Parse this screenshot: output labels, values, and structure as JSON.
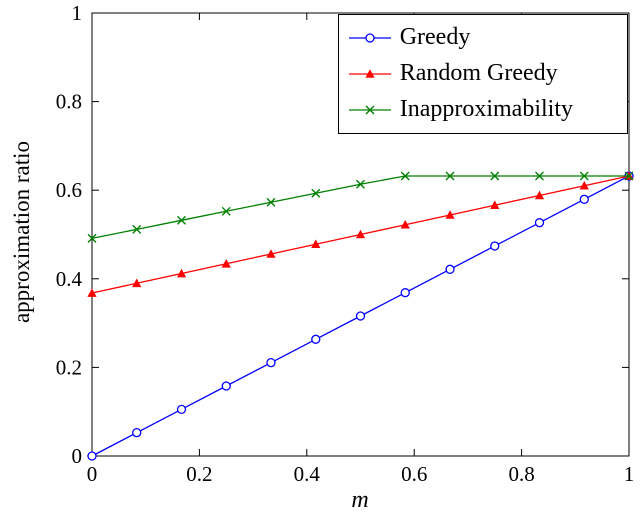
{
  "chart_data": {
    "type": "line",
    "title": "",
    "xlabel": "m",
    "ylabel": "approximation ratio",
    "xlim": [
      0,
      1
    ],
    "ylim": [
      0,
      1
    ],
    "grid": false,
    "legend_position": "top-right",
    "xticks": [
      0,
      0.2,
      0.4,
      0.6,
      0.8,
      1
    ],
    "xtick_labels": [
      "0",
      "0.2",
      "0.4",
      "0.6",
      "0.8",
      "1"
    ],
    "yticks": [
      0,
      0.2,
      0.4,
      0.6,
      0.8,
      1
    ],
    "ytick_labels": [
      "0",
      "0.2",
      "0.4",
      "0.6",
      "0.8",
      "1"
    ],
    "x": [
      0,
      0.0833,
      0.1667,
      0.25,
      0.3333,
      0.4167,
      0.5,
      0.5833,
      0.6667,
      0.75,
      0.8333,
      0.9167,
      1
    ],
    "series": [
      {
        "name": "Greedy",
        "color": "#0000ff",
        "marker": "circle",
        "y": [
          0,
          0.0527,
          0.1053,
          0.158,
          0.2107,
          0.2634,
          0.316,
          0.3687,
          0.4214,
          0.4741,
          0.5267,
          0.5794,
          0.6321
        ]
      },
      {
        "name": "Random Greedy",
        "color": "#ff0000",
        "marker": "triangle",
        "y": [
          0.3679,
          0.3899,
          0.4119,
          0.4339,
          0.456,
          0.478,
          0.5,
          0.522,
          0.544,
          0.5661,
          0.5881,
          0.6101,
          0.6321
        ]
      },
      {
        "name": "Inapproximability",
        "color": "#008000",
        "marker": "x",
        "y": [
          0.4912,
          0.5116,
          0.532,
          0.5524,
          0.5727,
          0.5931,
          0.6135,
          0.6321,
          0.6321,
          0.6321,
          0.6321,
          0.6321,
          0.6321
        ]
      }
    ]
  }
}
